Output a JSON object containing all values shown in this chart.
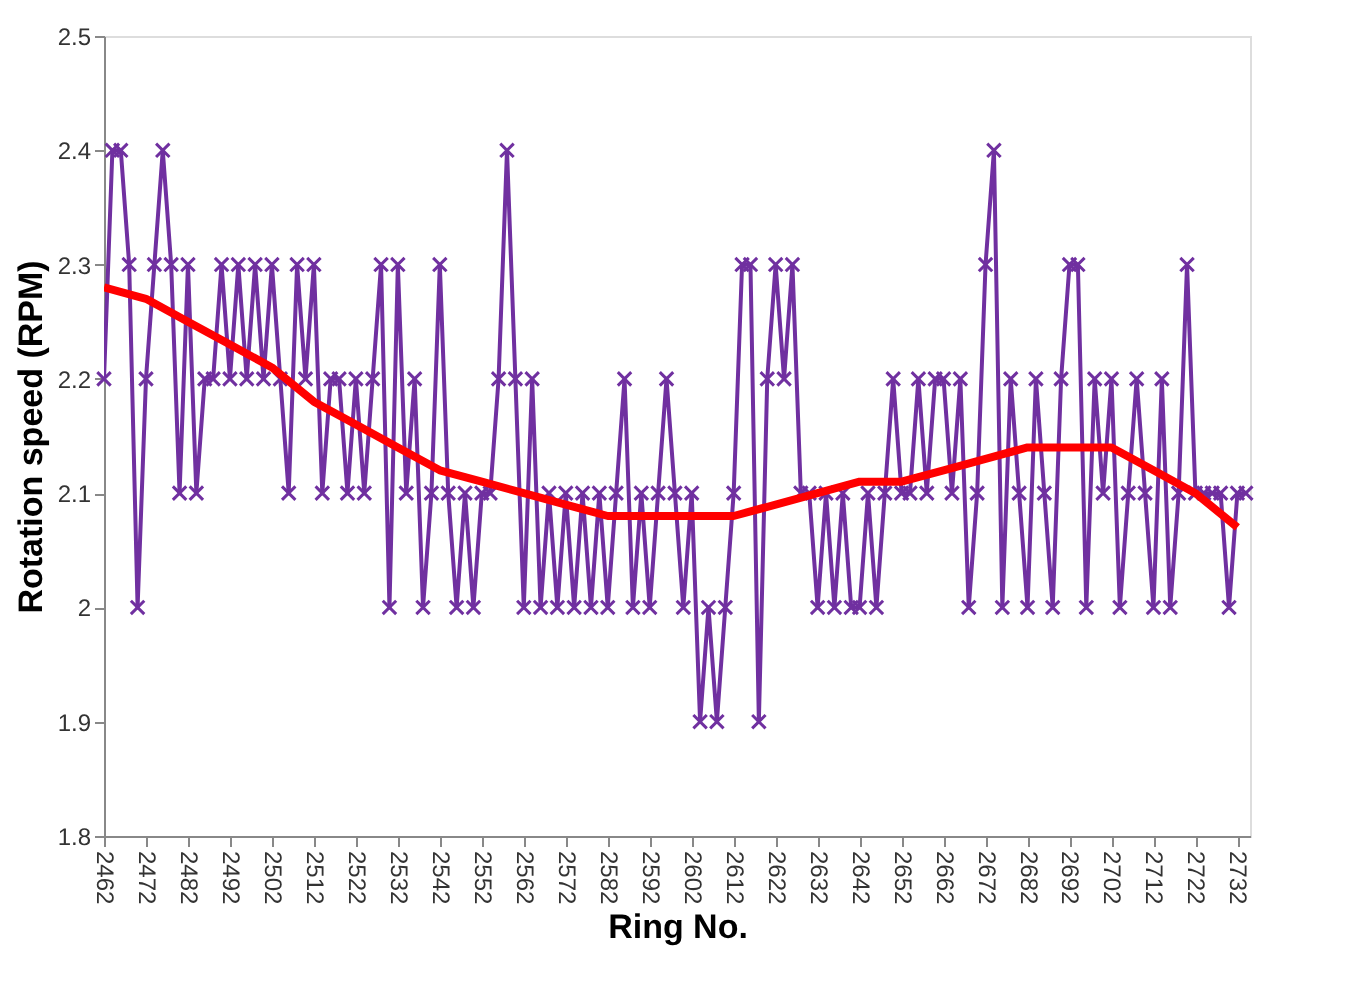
{
  "chart_data": {
    "type": "line",
    "xlabel": "Ring No.",
    "ylabel": "Rotation speed (RPM)",
    "xlim": [
      2462,
      2735
    ],
    "xticks": [
      2462,
      2472,
      2482,
      2492,
      2502,
      2512,
      2522,
      2532,
      2542,
      2552,
      2562,
      2572,
      2582,
      2592,
      2602,
      2612,
      2622,
      2632,
      2642,
      2652,
      2662,
      2672,
      2682,
      2692,
      2702,
      2712,
      2722,
      2732
    ],
    "ylim": [
      1.8,
      2.5
    ],
    "yticks": [
      1.8,
      1.9,
      2,
      2.1,
      2.2,
      2.3,
      2.4,
      2.5
    ],
    "grid": false,
    "legend": false,
    "series": [
      {
        "color": "#7030a0",
        "marker": "cross",
        "x": [
          2462,
          2464,
          2466,
          2468,
          2470,
          2472,
          2474,
          2476,
          2478,
          2480,
          2482,
          2484,
          2486,
          2488,
          2490,
          2492,
          2494,
          2496,
          2498,
          2500,
          2502,
          2504,
          2506,
          2508,
          2510,
          2512,
          2514,
          2516,
          2518,
          2520,
          2522,
          2524,
          2526,
          2528,
          2530,
          2532,
          2534,
          2536,
          2538,
          2540,
          2542,
          2544,
          2546,
          2548,
          2550,
          2552,
          2554,
          2556,
          2558,
          2560,
          2562,
          2564,
          2566,
          2568,
          2570,
          2572,
          2574,
          2576,
          2578,
          2580,
          2582,
          2584,
          2586,
          2588,
          2590,
          2592,
          2594,
          2596,
          2598,
          2600,
          2602,
          2604,
          2606,
          2608,
          2610,
          2612,
          2614,
          2616,
          2618,
          2620,
          2622,
          2624,
          2626,
          2628,
          2630,
          2632,
          2634,
          2636,
          2638,
          2640,
          2642,
          2644,
          2646,
          2648,
          2650,
          2652,
          2654,
          2656,
          2658,
          2660,
          2662,
          2664,
          2666,
          2668,
          2670,
          2672,
          2674,
          2676,
          2678,
          2680,
          2682,
          2684,
          2686,
          2688,
          2690,
          2692,
          2694,
          2696,
          2698,
          2700,
          2702,
          2704,
          2706,
          2708,
          2710,
          2712,
          2714,
          2716,
          2718,
          2720,
          2722,
          2724,
          2726,
          2728,
          2730,
          2732,
          2734
        ],
        "values": [
          2.2,
          2.4,
          2.4,
          2.3,
          2.0,
          2.2,
          2.3,
          2.4,
          2.3,
          2.1,
          2.3,
          2.1,
          2.2,
          2.2,
          2.3,
          2.2,
          2.3,
          2.2,
          2.3,
          2.2,
          2.3,
          2.2,
          2.1,
          2.3,
          2.2,
          2.3,
          2.1,
          2.2,
          2.2,
          2.1,
          2.2,
          2.1,
          2.2,
          2.3,
          2.0,
          2.3,
          2.1,
          2.2,
          2.0,
          2.1,
          2.3,
          2.1,
          2.0,
          2.1,
          2.0,
          2.1,
          2.1,
          2.2,
          2.4,
          2.2,
          2.0,
          2.2,
          2.0,
          2.1,
          2.0,
          2.1,
          2.0,
          2.1,
          2.0,
          2.1,
          2.0,
          2.1,
          2.2,
          2.0,
          2.1,
          2.0,
          2.1,
          2.2,
          2.1,
          2.0,
          2.1,
          1.9,
          2.0,
          1.9,
          2.0,
          2.1,
          2.3,
          2.3,
          1.9,
          2.2,
          2.3,
          2.2,
          2.3,
          2.1,
          2.1,
          2.0,
          2.1,
          2.0,
          2.1,
          2.0,
          2.0,
          2.1,
          2.0,
          2.1,
          2.2,
          2.1,
          2.1,
          2.2,
          2.1,
          2.2,
          2.2,
          2.1,
          2.2,
          2.0,
          2.1,
          2.3,
          2.4,
          2.0,
          2.2,
          2.1,
          2.0,
          2.2,
          2.1,
          2.0,
          2.2,
          2.3,
          2.3,
          2.0,
          2.2,
          2.1,
          2.2,
          2.0,
          2.1,
          2.2,
          2.1,
          2.0,
          2.2,
          2.0,
          2.1,
          2.3,
          2.1,
          2.1,
          2.1,
          2.1,
          2.0,
          2.1,
          2.1
        ]
      },
      {
        "color": "#ff0000",
        "marker": "none",
        "x": [
          2462,
          2472,
          2482,
          2492,
          2502,
          2512,
          2522,
          2532,
          2542,
          2552,
          2562,
          2572,
          2582,
          2592,
          2602,
          2612,
          2622,
          2632,
          2642,
          2652,
          2662,
          2672,
          2682,
          2692,
          2702,
          2712,
          2722,
          2732
        ],
        "values": [
          2.28,
          2.27,
          2.25,
          2.23,
          2.21,
          2.18,
          2.16,
          2.14,
          2.12,
          2.11,
          2.1,
          2.09,
          2.08,
          2.08,
          2.08,
          2.08,
          2.09,
          2.1,
          2.11,
          2.11,
          2.12,
          2.13,
          2.14,
          2.14,
          2.14,
          2.12,
          2.1,
          2.07
        ]
      }
    ]
  }
}
